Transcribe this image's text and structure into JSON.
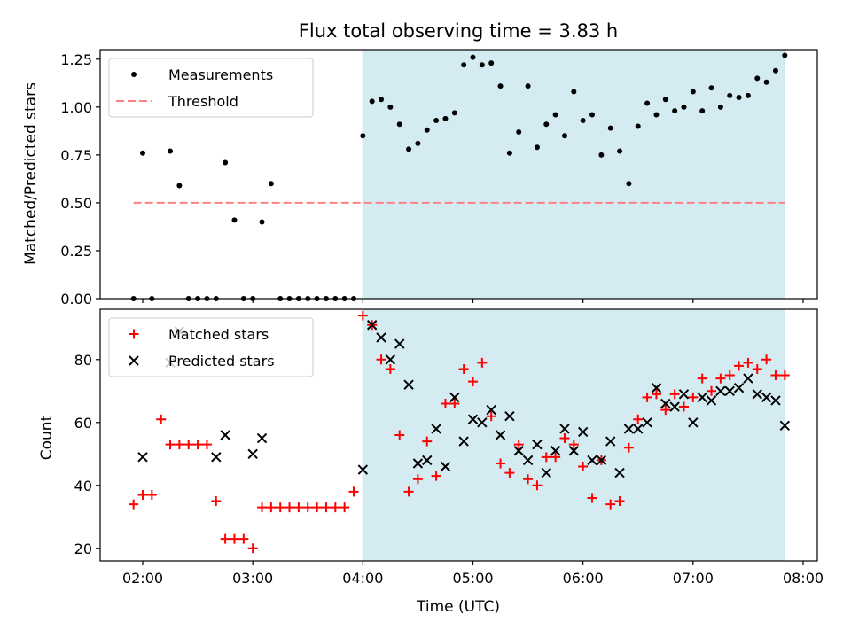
{
  "chart_data": [
    {
      "type": "scatter",
      "title": "Flux total observing time = 3.83 h",
      "xlabel": "",
      "ylabel": "Matched/Predicted stars",
      "ylim": [
        0.0,
        1.3
      ],
      "yticks": [
        "0.00",
        "0.25",
        "0.50",
        "0.75",
        "1.00",
        "1.25"
      ],
      "legend_position": "upper-left",
      "shaded_span": {
        "start": "04:00",
        "end": "07:50",
        "color": "#add8e6"
      },
      "series": [
        {
          "name": "Measurements",
          "marker": "dot",
          "color": "#000000",
          "x": [
            "01:55",
            "02:00",
            "02:05",
            "02:15",
            "02:20",
            "02:25",
            "02:30",
            "02:35",
            "02:40",
            "02:45",
            "02:50",
            "02:55",
            "03:00",
            "03:05",
            "03:10",
            "03:15",
            "03:20",
            "03:25",
            "03:30",
            "03:35",
            "03:40",
            "03:45",
            "03:50",
            "03:55",
            "04:00",
            "04:05",
            "04:10",
            "04:15",
            "04:20",
            "04:25",
            "04:30",
            "04:35",
            "04:40",
            "04:45",
            "04:50",
            "04:55",
            "05:00",
            "05:05",
            "05:10",
            "05:15",
            "05:20",
            "05:25",
            "05:30",
            "05:35",
            "05:40",
            "05:45",
            "05:50",
            "05:55",
            "06:00",
            "06:05",
            "06:10",
            "06:15",
            "06:20",
            "06:25",
            "06:30",
            "06:35",
            "06:40",
            "06:45",
            "06:50",
            "06:55",
            "07:00",
            "07:05",
            "07:10",
            "07:15",
            "07:20",
            "07:25",
            "07:30",
            "07:35",
            "07:40",
            "07:45",
            "07:50"
          ],
          "values": [
            0.0,
            0.76,
            0.0,
            0.77,
            0.59,
            0.0,
            0.0,
            0.0,
            0.0,
            0.71,
            0.41,
            0.0,
            0.0,
            0.4,
            0.6,
            0.0,
            0.0,
            0.0,
            0.0,
            0.0,
            0.0,
            0.0,
            0.0,
            0.0,
            0.85,
            1.03,
            1.04,
            1.0,
            0.91,
            0.78,
            0.81,
            0.88,
            0.93,
            0.94,
            0.97,
            1.22,
            1.26,
            1.22,
            1.23,
            1.11,
            0.76,
            0.87,
            1.11,
            0.79,
            0.91,
            0.96,
            0.85,
            1.08,
            0.93,
            0.96,
            0.75,
            0.89,
            0.77,
            0.6,
            0.9,
            1.02,
            0.96,
            1.04,
            0.98,
            1.0,
            1.08,
            0.98,
            1.1,
            1.0,
            1.06,
            1.05,
            1.06,
            1.15,
            1.13,
            1.19,
            1.27
          ]
        },
        {
          "name": "Threshold",
          "marker": "dashed-line",
          "color": "#ff8080",
          "x": [
            "01:55",
            "07:50"
          ],
          "values": [
            0.5,
            0.5
          ]
        }
      ]
    },
    {
      "type": "scatter",
      "title": "",
      "xlabel": "Time (UTC)",
      "ylabel": "Count",
      "ylim": [
        16,
        96
      ],
      "yticks": [
        "20",
        "40",
        "60",
        "80"
      ],
      "xticks": [
        "02:00",
        "03:00",
        "04:00",
        "05:00",
        "06:00",
        "07:00",
        "08:00"
      ],
      "legend_position": "upper-left",
      "shaded_span": {
        "start": "04:00",
        "end": "07:50",
        "color": "#add8e6"
      },
      "series": [
        {
          "name": "Matched stars",
          "marker": "plus",
          "color": "#ff0000",
          "x": [
            "01:55",
            "02:00",
            "02:05",
            "02:10",
            "02:15",
            "02:20",
            "02:25",
            "02:30",
            "02:35",
            "02:40",
            "02:45",
            "02:50",
            "02:55",
            "03:00",
            "03:05",
            "03:10",
            "03:15",
            "03:20",
            "03:25",
            "03:30",
            "03:35",
            "03:40",
            "03:45",
            "03:50",
            "03:55",
            "04:00",
            "04:05",
            "04:10",
            "04:15",
            "04:20",
            "04:25",
            "04:30",
            "04:35",
            "04:40",
            "04:45",
            "04:50",
            "04:55",
            "05:00",
            "05:05",
            "05:10",
            "05:15",
            "05:20",
            "05:25",
            "05:30",
            "05:35",
            "05:40",
            "05:45",
            "05:50",
            "05:55",
            "06:00",
            "06:05",
            "06:10",
            "06:15",
            "06:20",
            "06:25",
            "06:30",
            "06:35",
            "06:40",
            "06:45",
            "06:50",
            "06:55",
            "07:00",
            "07:05",
            "07:10",
            "07:15",
            "07:20",
            "07:25",
            "07:30",
            "07:35",
            "07:40",
            "07:45",
            "07:50"
          ],
          "values": [
            34,
            37,
            37,
            61,
            53,
            53,
            53,
            53,
            53,
            35,
            23,
            23,
            23,
            20,
            33,
            33,
            33,
            33,
            33,
            33,
            33,
            33,
            33,
            33,
            38,
            94,
            91,
            80,
            77,
            56,
            38,
            42,
            54,
            43,
            66,
            66,
            77,
            73,
            79,
            62,
            47,
            44,
            53,
            42,
            40,
            49,
            49,
            55,
            53,
            46,
            36,
            48,
            34,
            35,
            52,
            61,
            68,
            69,
            64,
            69,
            65,
            68,
            74,
            70,
            74,
            75,
            78,
            79,
            77,
            80,
            75,
            75
          ]
        },
        {
          "name": "Predicted stars",
          "marker": "x",
          "color": "#000000",
          "x": [
            "02:00",
            "02:15",
            "02:20",
            "02:40",
            "02:45",
            "03:00",
            "03:05",
            "04:00",
            "04:05",
            "04:10",
            "04:15",
            "04:20",
            "04:25",
            "04:30",
            "04:35",
            "04:40",
            "04:45",
            "04:50",
            "04:55",
            "05:00",
            "05:05",
            "05:10",
            "05:15",
            "05:20",
            "05:25",
            "05:30",
            "05:35",
            "05:40",
            "05:45",
            "05:50",
            "05:55",
            "06:00",
            "06:05",
            "06:10",
            "06:15",
            "06:20",
            "06:25",
            "06:30",
            "06:35",
            "06:40",
            "06:45",
            "06:50",
            "06:55",
            "07:00",
            "07:05",
            "07:10",
            "07:15",
            "07:20",
            "07:25",
            "07:30",
            "07:35",
            "07:40",
            "07:45",
            "07:50"
          ],
          "values": [
            49,
            79,
            89,
            49,
            56,
            50,
            55,
            45,
            91,
            87,
            80,
            85,
            72,
            47,
            48,
            58,
            46,
            68,
            54,
            61,
            60,
            64,
            56,
            62,
            51,
            48,
            53,
            44,
            51,
            58,
            51,
            57,
            48,
            48,
            54,
            44,
            58,
            58,
            60,
            71,
            66,
            65,
            69,
            60,
            68,
            67,
            70,
            70,
            71,
            74,
            69,
            68,
            67,
            59
          ]
        }
      ]
    }
  ]
}
